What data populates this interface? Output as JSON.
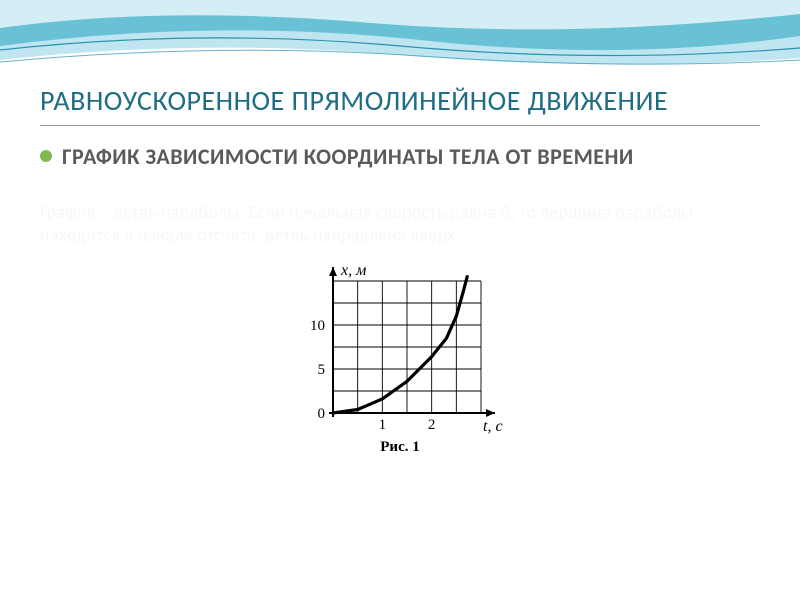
{
  "decor": {
    "bg_light": "#bfe6f0",
    "bg_mid": "#5fbcd3",
    "bg_highlight": "#e8f6fa",
    "stroke": "#2a93b0"
  },
  "title": "РАВНОУСКОРЕННОЕ ПРЯМОЛИНЕЙНОЕ ДВИЖЕНИЕ",
  "title_color": "#1f6d85",
  "bullet": {
    "color": "#7fb94f",
    "text": "ГРАФИК ЗАВИСИМОСТИ КООРДИНАТЫ ТЕЛА ОТ ВРЕМЕНИ",
    "text_color": "#5a5a5a"
  },
  "faint_paragraph": "График – ветвь параболы. Если начальная скорость равна 0, то вершина параболы находится в начале отсчета, ветвь направлена вверх.",
  "faint_color": "#f4f8fa",
  "chart": {
    "type": "line",
    "y_label": "x, м",
    "x_label": "t, с",
    "caption": "Рис. 1",
    "x_range": [
      0,
      3
    ],
    "y_range": [
      0,
      15
    ],
    "x_ticks": [
      1,
      2
    ],
    "y_ticks": [
      5,
      10
    ],
    "grid_step_x": 0.5,
    "grid_step_y": 2.5,
    "curve": [
      [
        0,
        0
      ],
      [
        0.5,
        0.4
      ],
      [
        1.0,
        1.6
      ],
      [
        1.5,
        3.6
      ],
      [
        2.0,
        6.4
      ],
      [
        2.3,
        8.5
      ],
      [
        2.5,
        11.0
      ],
      [
        2.65,
        14.0
      ],
      [
        2.72,
        15.5
      ]
    ],
    "curve_color": "#000000",
    "curve_width": 3.2,
    "grid_color": "#000000",
    "grid_width": 0.9,
    "axis_width": 2.0,
    "background": "#ffffff",
    "font_family": "serif",
    "label_fontsize": 16,
    "tick_fontsize": 15,
    "caption_fontsize": 15
  }
}
